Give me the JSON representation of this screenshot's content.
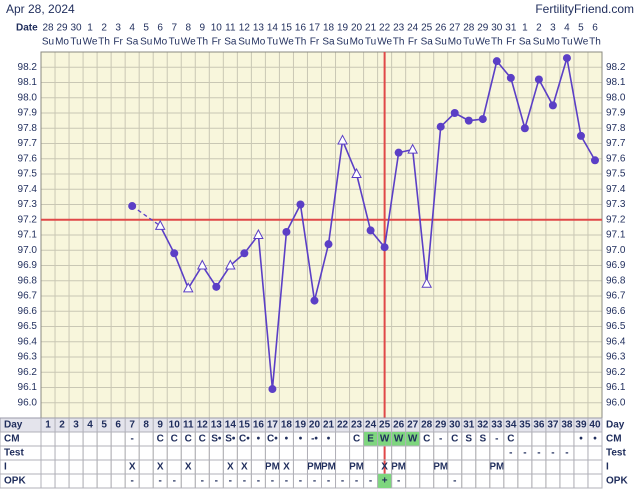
{
  "chart_data": {
    "type": "line",
    "title": "Apr 28, 2024",
    "site": "FertilityFriend.com",
    "date_label": "Date",
    "dates": [
      28,
      29,
      30,
      1,
      2,
      3,
      4,
      5,
      6,
      7,
      8,
      9,
      10,
      11,
      12,
      13,
      14,
      15,
      16,
      17,
      18,
      19,
      20,
      21,
      22,
      23,
      24,
      25,
      26,
      27,
      28,
      29,
      30,
      31,
      1,
      2,
      3,
      4,
      5,
      6
    ],
    "weekdays": [
      "Su",
      "Mo",
      "Tu",
      "We",
      "Th",
      "Fr",
      "Sa",
      "Su",
      "Mo",
      "Tu",
      "We",
      "Th",
      "Fr",
      "Sa",
      "Su",
      "Mo",
      "Tu",
      "We",
      "Th",
      "Fr",
      "Sa",
      "Su",
      "Mo",
      "Tu",
      "We",
      "Th",
      "Fr",
      "Sa",
      "Su",
      "Mo",
      "Tu",
      "We",
      "Th",
      "Fr",
      "Sa",
      "Su",
      "Mo",
      "Tu",
      "We",
      "Th"
    ],
    "day_label": "Day",
    "categories": [
      1,
      2,
      3,
      4,
      5,
      6,
      7,
      8,
      9,
      10,
      11,
      12,
      13,
      14,
      15,
      16,
      17,
      18,
      19,
      20,
      21,
      22,
      23,
      24,
      25,
      26,
      27,
      28,
      29,
      30,
      31,
      32,
      33,
      34,
      35,
      36,
      37,
      38,
      39,
      40
    ],
    "values": [
      null,
      null,
      null,
      null,
      null,
      null,
      97.29,
      null,
      97.16,
      96.98,
      96.75,
      96.9,
      96.76,
      96.9,
      96.98,
      97.1,
      96.09,
      97.12,
      97.3,
      96.67,
      97.04,
      97.72,
      97.5,
      97.13,
      97.02,
      97.64,
      97.66,
      96.78,
      97.81,
      97.9,
      97.85,
      97.86,
      98.24,
      98.13,
      97.8,
      98.12,
      97.95,
      98.26,
      97.75,
      97.59
    ],
    "markers": [
      null,
      null,
      null,
      null,
      null,
      null,
      "dot",
      null,
      "triangle",
      "dot",
      "triangle",
      "triangle",
      "dot",
      "triangle",
      "dot",
      "triangle",
      "dot",
      "dot",
      "dot",
      "dot",
      "dot",
      "triangle",
      "triangle",
      "dot",
      "dot",
      "dot",
      "triangle",
      "triangle",
      "dot",
      "dot",
      "dot",
      "dot",
      "dot",
      "dot",
      "dot",
      "dot",
      "dot",
      "dot",
      "dot",
      "dot"
    ],
    "color": "#5b3fc6",
    "coverline": 97.2,
    "ovulation_day": 25,
    "coverline_color": "#e04848",
    "ylim": [
      95.9,
      98.3
    ],
    "yticks": [
      98.2,
      98.1,
      {
        "value": 98.0,
        "label": "98.0"
      },
      97.9,
      97.8,
      97.7,
      97.6,
      97.5,
      97.4,
      97.3,
      97.2,
      97.1,
      {
        "value": 97.0,
        "label": "97.0"
      },
      96.9,
      96.8,
      96.7,
      96.6,
      96.5,
      96.4,
      96.3,
      96.2,
      96.1,
      {
        "value": 96.0,
        "label": "96.0"
      }
    ],
    "grid": true,
    "rows": [
      {
        "label": "CM",
        "highlight": [
          24,
          25,
          26,
          27
        ],
        "cells": [
          null,
          null,
          null,
          null,
          null,
          null,
          "-",
          null,
          "C",
          "C",
          "C",
          "C",
          "S•",
          "S•",
          "C•",
          "•",
          "C•",
          "•",
          "•",
          "-•",
          "•",
          null,
          "C",
          "E",
          "W",
          "W",
          "W",
          "C",
          "-",
          "C",
          "S",
          "S",
          "-",
          "C",
          null,
          null,
          null,
          null,
          "•",
          "•"
        ]
      },
      {
        "label": "Test",
        "highlight": [],
        "cells": [
          null,
          null,
          null,
          null,
          null,
          null,
          null,
          null,
          null,
          null,
          null,
          null,
          null,
          null,
          null,
          null,
          null,
          null,
          null,
          null,
          null,
          null,
          null,
          null,
          null,
          null,
          null,
          null,
          null,
          null,
          null,
          null,
          null,
          "-",
          "-",
          "-",
          "-",
          "-",
          null,
          null
        ]
      },
      {
        "label": "I",
        "highlight": [],
        "cells": [
          null,
          null,
          null,
          null,
          null,
          null,
          "X",
          null,
          "X",
          null,
          "X",
          null,
          null,
          "X",
          "X",
          null,
          "PM",
          "X",
          null,
          "PM",
          "PM",
          null,
          "PM",
          null,
          "X",
          "PM",
          null,
          null,
          "PM",
          null,
          null,
          null,
          "PM",
          null,
          null,
          null,
          null,
          null,
          null,
          null
        ]
      },
      {
        "label": "OPK",
        "highlight": [
          25
        ],
        "cells": [
          null,
          null,
          null,
          null,
          null,
          null,
          "-",
          null,
          "-",
          "-",
          null,
          "-",
          "-",
          "-",
          "-",
          "-",
          "-",
          "-",
          "-",
          "-",
          "-",
          "-",
          "-",
          "-",
          "+",
          "-",
          null,
          null,
          null,
          "-",
          null,
          null,
          null,
          null,
          null,
          null,
          null,
          null,
          null,
          null
        ]
      }
    ]
  }
}
